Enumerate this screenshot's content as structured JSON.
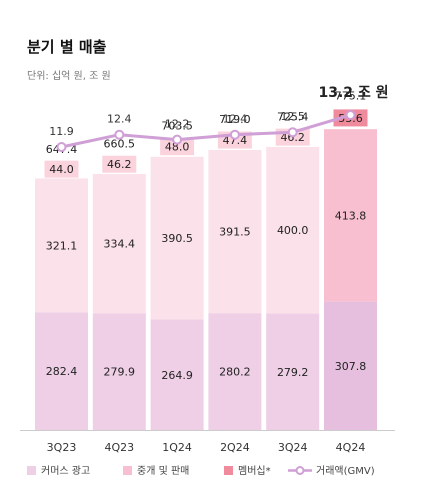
{
  "header": {
    "title": "분기 별 매출",
    "subtitle": "단위: 십억 원, 조 원"
  },
  "colors": {
    "commerce": "#eecfe6",
    "commerce_highlight": "#e5bfdd",
    "brokerage": "#fbe1e9",
    "brokerage_highlight": "#f7bfcf",
    "membership_box": "#fbd3dd",
    "membership_highlight": "#f08a9d",
    "gmv_line": "#cf9fd6",
    "axis": "#cccccc"
  },
  "chart_data": {
    "type": "bar",
    "stacked": true,
    "categories": [
      "3Q23",
      "4Q23",
      "1Q24",
      "2Q24",
      "3Q24",
      "4Q24"
    ],
    "series": [
      {
        "name": "커머스 광고",
        "values": [
          282.4,
          279.9,
          264.9,
          280.2,
          279.2,
          307.8
        ]
      },
      {
        "name": "중개 및 판매",
        "values": [
          321.1,
          334.4,
          390.5,
          391.5,
          400.0,
          413.8
        ]
      },
      {
        "name": "멤버십*",
        "values": [
          44.0,
          46.2,
          48.0,
          47.4,
          46.2,
          53.6
        ]
      }
    ],
    "totals": [
      "647.4",
      "660.5",
      "703.5",
      "719.0",
      "725.4",
      "775.1"
    ],
    "line": {
      "name": "거래액(GMV)",
      "values": [
        11.9,
        12.4,
        12.2,
        12.4,
        12.5,
        13.2
      ],
      "labels": [
        "11.9",
        "12.4",
        "12.2",
        "12.4",
        "12.5",
        "13.2 조 원"
      ]
    },
    "highlight_index": 5,
    "legend_position": "bottom"
  }
}
